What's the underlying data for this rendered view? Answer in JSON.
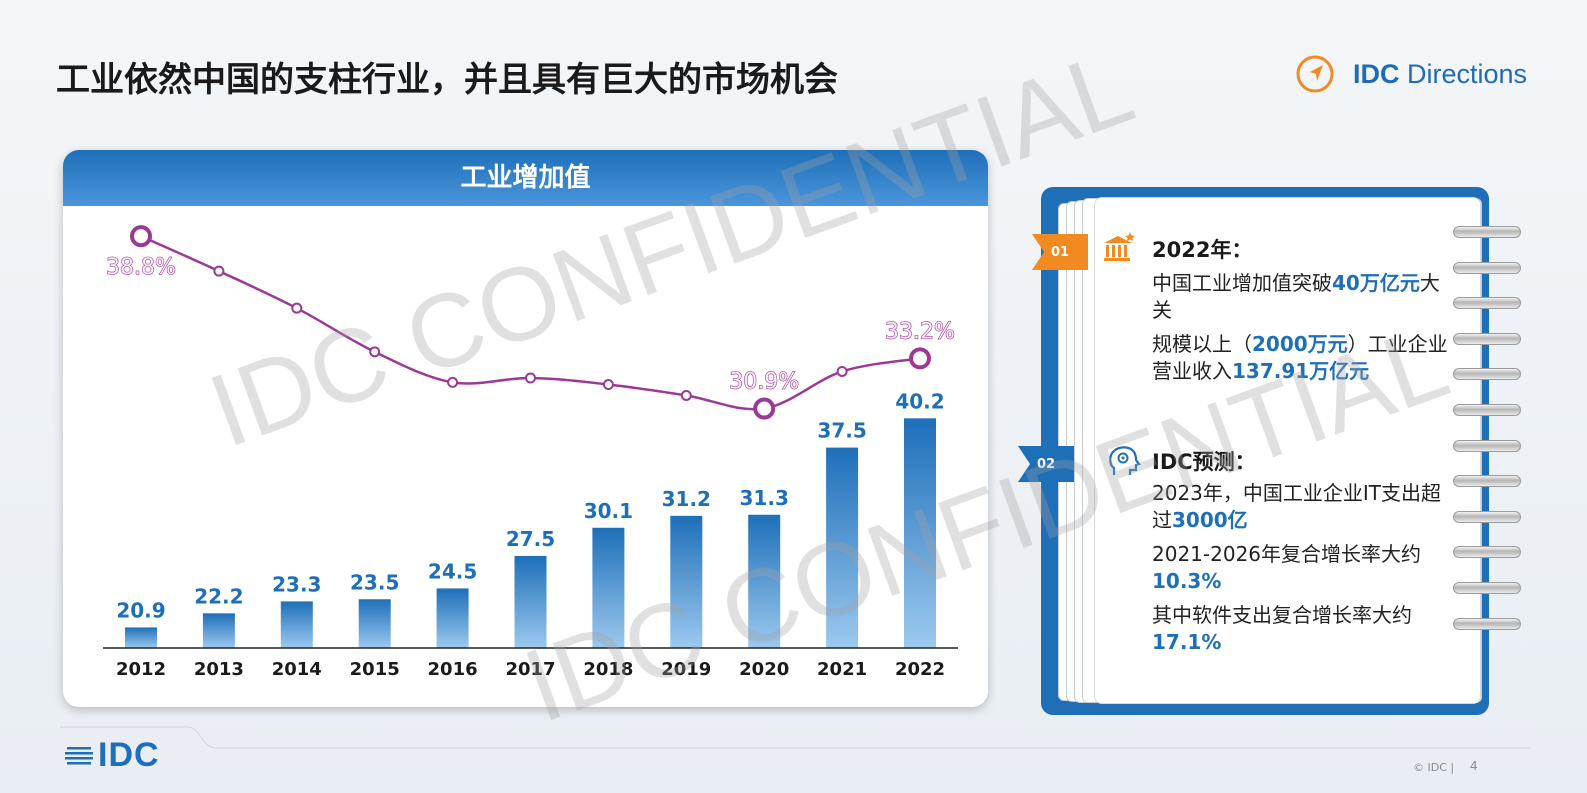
{
  "title": "工业依然中国的支柱行业，并且具有巨大的市场机会",
  "brand": {
    "name_bold": "IDC",
    "name_rest": " Directions",
    "accent": "#f18b21",
    "color": "#1e6fb9"
  },
  "chart_card": {
    "header": "工业增加值"
  },
  "chart_data": {
    "type": "bar",
    "categories": [
      "2012",
      "2013",
      "2014",
      "2015",
      "2016",
      "2017",
      "2018",
      "2019",
      "2020",
      "2021",
      "2022"
    ],
    "series": [
      {
        "type": "bar",
        "values": [
          20.9,
          22.2,
          23.3,
          23.5,
          24.5,
          27.5,
          30.1,
          31.2,
          31.3,
          37.5,
          40.2
        ],
        "color": "#2a7bc8"
      },
      {
        "type": "line",
        "values": [
          38.8,
          37.2,
          35.5,
          33.5,
          32.1,
          32.3,
          32.0,
          31.5,
          30.9,
          32.6,
          33.2
        ],
        "color": "#9b3a96",
        "labels": [
          "38.8%",
          "",
          "",
          "",
          "",
          "",
          "",
          "",
          "30.9%",
          "",
          "33.2%"
        ]
      }
    ],
    "bar_ylim": [
      19,
      43
    ],
    "line_ylim": [
      29,
      40
    ]
  },
  "notebook": {
    "tabs": [
      "01",
      "02"
    ],
    "section1": {
      "icon": "bank-icon",
      "heading": "2022年：",
      "line1_pre": "中国工业增加值突破",
      "line1_hl": "40万亿元",
      "line1_post": "大关",
      "line2_pre": "规模以上（",
      "line2_hl1": "2000万元",
      "line2_mid": "）工业企业营业收入",
      "line2_hl2": "137.91万亿元"
    },
    "section2": {
      "icon": "head-gear-icon",
      "heading": "IDC预测：",
      "line1_pre": "2023年，中国工业企业IT支出超过",
      "line1_hl": "3000亿",
      "line2_pre": "2021-2026年复合增长率大约",
      "line2_hl": "10.3%",
      "line3_pre": "其中软件支出复合增长率大约",
      "line3_hl": "17.1%"
    }
  },
  "watermark": "IDC CONFIDENTIAL",
  "footer": {
    "logo": "IDC",
    "copyright": "© IDC |",
    "page": "4"
  }
}
